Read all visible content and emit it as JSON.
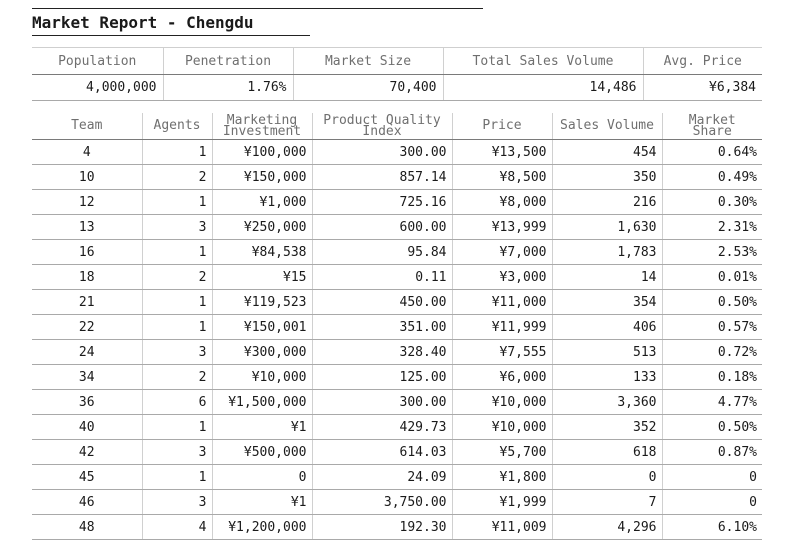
{
  "report": {
    "title": "Market Report - Chengdu"
  },
  "summary": {
    "headers": [
      "Population",
      "Penetration",
      "Market Size",
      "Total Sales Volume",
      "Avg. Price"
    ],
    "values": [
      "4,000,000",
      "1.76%",
      "70,400",
      "14,486",
      "¥6,384"
    ]
  },
  "teams_table": {
    "headers": [
      [
        "Team"
      ],
      [
        "Agents"
      ],
      [
        "Marketing",
        "Investment"
      ],
      [
        "Product Quality",
        "Index"
      ],
      [
        "Price"
      ],
      [
        "Sales Volume"
      ],
      [
        "Market",
        "Share"
      ]
    ],
    "rows": [
      [
        "4",
        "1",
        "¥100,000",
        "300.00",
        "¥13,500",
        "454",
        "0.64%"
      ],
      [
        "10",
        "2",
        "¥150,000",
        "857.14",
        "¥8,500",
        "350",
        "0.49%"
      ],
      [
        "12",
        "1",
        "¥1,000",
        "725.16",
        "¥8,000",
        "216",
        "0.30%"
      ],
      [
        "13",
        "3",
        "¥250,000",
        "600.00",
        "¥13,999",
        "1,630",
        "2.31%"
      ],
      [
        "16",
        "1",
        "¥84,538",
        "95.84",
        "¥7,000",
        "1,783",
        "2.53%"
      ],
      [
        "18",
        "2",
        "¥15",
        "0.11",
        "¥3,000",
        "14",
        "0.01%"
      ],
      [
        "21",
        "1",
        "¥119,523",
        "450.00",
        "¥11,000",
        "354",
        "0.50%"
      ],
      [
        "22",
        "1",
        "¥150,001",
        "351.00",
        "¥11,999",
        "406",
        "0.57%"
      ],
      [
        "24",
        "3",
        "¥300,000",
        "328.40",
        "¥7,555",
        "513",
        "0.72%"
      ],
      [
        "34",
        "2",
        "¥10,000",
        "125.00",
        "¥6,000",
        "133",
        "0.18%"
      ],
      [
        "36",
        "6",
        "¥1,500,000",
        "300.00",
        "¥10,000",
        "3,360",
        "4.77%"
      ],
      [
        "40",
        "1",
        "¥1",
        "429.73",
        "¥10,000",
        "352",
        "0.50%"
      ],
      [
        "42",
        "3",
        "¥500,000",
        "614.03",
        "¥5,700",
        "618",
        "0.87%"
      ],
      [
        "45",
        "1",
        "0",
        "24.09",
        "¥1,800",
        "0",
        "0"
      ],
      [
        "46",
        "3",
        "¥1",
        "3,750.00",
        "¥1,999",
        "7",
        "0"
      ],
      [
        "48",
        "4",
        "¥1,200,000",
        "192.30",
        "¥11,009",
        "4,296",
        "6.10%"
      ]
    ]
  }
}
